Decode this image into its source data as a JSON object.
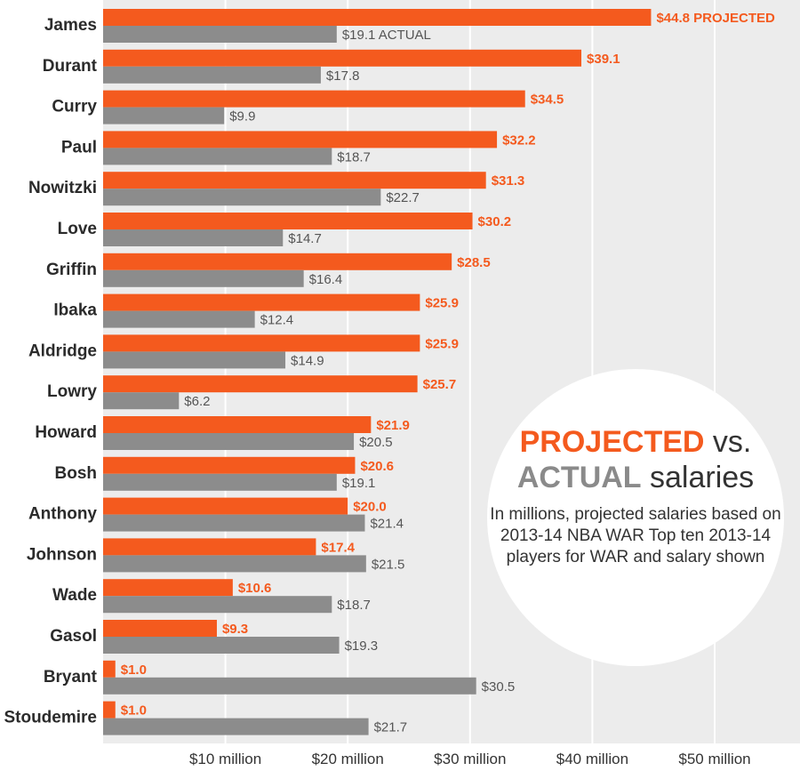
{
  "chart_data": {
    "type": "bar",
    "orientation": "horizontal",
    "categories": [
      "James",
      "Durant",
      "Curry",
      "Paul",
      "Nowitzki",
      "Love",
      "Griffin",
      "Ibaka",
      "Aldridge",
      "Lowry",
      "Howard",
      "Bosh",
      "Anthony",
      "Johnson",
      "Wade",
      "Gasol",
      "Bryant",
      "Stoudemire"
    ],
    "series": [
      {
        "name": "PROJECTED",
        "color": "#f45a1e",
        "values": [
          44.8,
          39.1,
          34.5,
          32.2,
          31.3,
          30.2,
          28.5,
          25.9,
          25.9,
          25.7,
          21.9,
          20.6,
          20.0,
          17.4,
          10.6,
          9.3,
          1.0,
          1.0
        ],
        "labels": [
          "$44.8 PROJECTED",
          "$39.1",
          "$34.5",
          "$32.2",
          "$31.3",
          "$30.2",
          "$28.5",
          "$25.9",
          "$25.9",
          "$25.7",
          "$21.9",
          "$20.6",
          "$20.0",
          "$17.4",
          "$10.6",
          "$9.3",
          "$1.0",
          "$1.0"
        ]
      },
      {
        "name": "ACTUAL",
        "color": "#8c8c8c",
        "values": [
          19.1,
          17.8,
          9.9,
          18.7,
          22.7,
          14.7,
          16.4,
          12.4,
          14.9,
          6.2,
          20.5,
          19.1,
          21.4,
          21.5,
          18.7,
          19.3,
          30.5,
          21.7
        ],
        "labels": [
          "$19.1 ACTUAL",
          "$17.8",
          "$9.9",
          "$18.7",
          "$22.7",
          "$14.7",
          "$16.4",
          "$12.4",
          "$14.9",
          "$6.2",
          "$20.5",
          "$19.1",
          "$21.4",
          "$21.5",
          "$18.7",
          "$19.3",
          "$30.5",
          "$21.7"
        ]
      }
    ],
    "xlim": [
      0,
      56
    ],
    "xticks": [
      10,
      20,
      30,
      40,
      50
    ],
    "xtick_labels": [
      "$10 million",
      "$20 million",
      "$30 million",
      "$40 million",
      "$50 million"
    ],
    "grid": true
  },
  "legend": {
    "title_projected": "PROJECTED",
    "title_vs": " vs.",
    "title_actual": "ACTUAL",
    "title_salaries": " salaries",
    "note": "In millions, projected salaries based on 2013-14 NBA WAR Top ten 2013-14 players for WAR and salary shown"
  }
}
